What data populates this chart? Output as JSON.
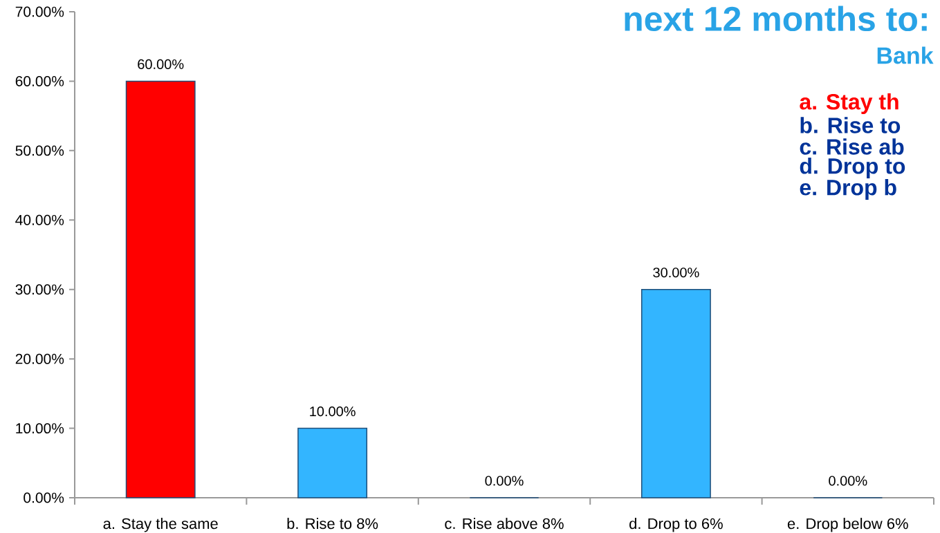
{
  "chart_data": {
    "type": "bar",
    "title": "next 12 months to:",
    "categories": [
      "a. Stay the same",
      "b. Rise to 8%",
      "c. Rise above 8%",
      "d. Drop to 6%",
      "e. Drop below 6%"
    ],
    "values": [
      60,
      10,
      0,
      30,
      0
    ],
    "colors": [
      "#ff0000",
      "#33b5ff",
      "#33b5ff",
      "#33b5ff",
      "#33b5ff"
    ],
    "value_labels": [
      "60.00%",
      "10.00%",
      "0.00%",
      "30.00%",
      "0.00%"
    ],
    "ylim": [
      0,
      70
    ],
    "yticks": [
      {
        "value": 0,
        "label": "0.00%"
      },
      {
        "value": 10,
        "label": "10.00%"
      },
      {
        "value": 20,
        "label": "20.00%"
      },
      {
        "value": 30,
        "label": "30.00%"
      },
      {
        "value": 40,
        "label": "40.00%"
      },
      {
        "value": 50,
        "label": "50.00%"
      },
      {
        "value": 60,
        "label": "60.00%"
      },
      {
        "value": 70,
        "label": "70.00%"
      }
    ],
    "annotations": [
      "Bank",
      "a. Stay th",
      "b. Rise to",
      "c. Rise ab",
      "d. Drop to",
      "e. Drop b"
    ]
  }
}
